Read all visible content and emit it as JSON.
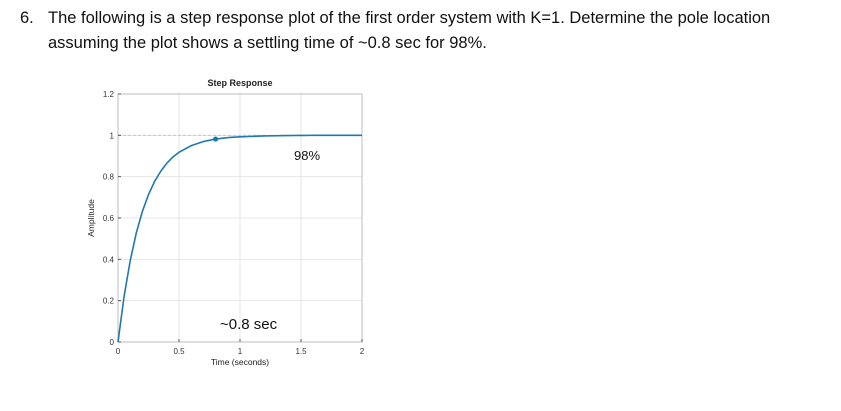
{
  "question": {
    "number": "6.",
    "text": "The following is a step response plot of the first order system with K=1. Determine the pole location assuming the plot shows a settling time of ~0.8 sec for 98%."
  },
  "chart_data": {
    "type": "line",
    "title": "Step Response",
    "xlabel": "Time (seconds)",
    "ylabel": "Amplitude",
    "xlim": [
      0,
      2
    ],
    "ylim": [
      0,
      1.2
    ],
    "xticks": [
      "0",
      "0.5",
      "1",
      "1.5",
      "2"
    ],
    "yticks": [
      "0",
      "0.2",
      "0.4",
      "0.6",
      "0.8",
      "1",
      "1.2"
    ],
    "grid": true,
    "series": [
      {
        "x": [
          0,
          0.05,
          0.1,
          0.15,
          0.2,
          0.25,
          0.3,
          0.35,
          0.4,
          0.45,
          0.5,
          0.6,
          0.7,
          0.8,
          0.9,
          1.0,
          1.2,
          1.4,
          1.6,
          1.8,
          2.0
        ],
        "y": [
          0,
          0.221,
          0.393,
          0.528,
          0.632,
          0.713,
          0.777,
          0.826,
          0.865,
          0.895,
          0.918,
          0.95,
          0.97,
          0.982,
          0.989,
          0.993,
          0.997,
          0.999,
          1.0,
          1.0,
          1.0
        ],
        "color": "#1f77b4"
      }
    ],
    "marker_point": {
      "x": 0.8,
      "y": 0.982
    },
    "final_value_line": 1,
    "annotations": {
      "settling_label": "98%",
      "time_label": "~0.8 sec"
    }
  }
}
